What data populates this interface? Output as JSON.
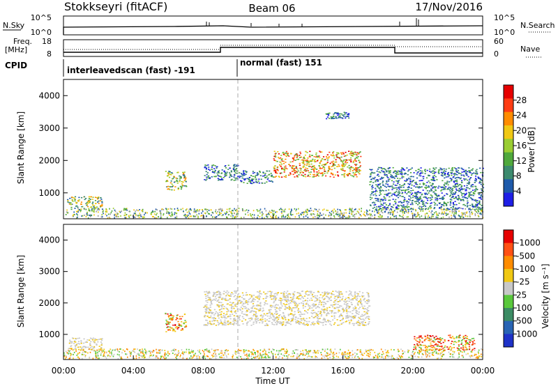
{
  "header": {
    "station": "Stokkseyri (fitACF)",
    "beam": "Beam 06",
    "date": "17/Nov/2016"
  },
  "strip": {
    "nsky_label": "N.Sky",
    "nsearch_label": "N.Search",
    "nsky_ticks": [
      "10^5",
      "10^0"
    ],
    "freq_label_1": "Freq.",
    "freq_label_2": "[MHz]",
    "freq_ticks": [
      "18",
      "8"
    ],
    "nave_label": "Nave",
    "nave_ticks": [
      "60",
      "0"
    ],
    "cpid_label": "CPID",
    "cpid_segments": [
      "interleavedscan (fast) -191",
      "normal (fast) 151"
    ]
  },
  "colors": {
    "power": [
      "#1e1ee6",
      "#1e5aaa",
      "#3c8a6e",
      "#4fa83c",
      "#9acd32",
      "#f0c814",
      "#ff8c00",
      "#ff3c14",
      "#e60000"
    ],
    "velocity": [
      "#1e32c8",
      "#2864b4",
      "#3c8c64",
      "#5ac83c",
      "#c8c8c8",
      "#f0c814",
      "#ff8c00",
      "#ff5014",
      "#e60000"
    ]
  },
  "chart_data": [
    {
      "type": "heatmap",
      "title": "Power",
      "ylabel": "Slant Range [km]",
      "y_ticks": [
        "1000",
        "2000",
        "3000",
        "4000"
      ],
      "ylim": [
        200,
        4500
      ],
      "xlim_hours": [
        0,
        24
      ],
      "colorbar_label": "Power [dB]",
      "colorbar_ticks": [
        "4",
        "8",
        "12",
        "16",
        "20",
        "24",
        "28"
      ],
      "regions": [
        {
          "t": [
            0.2,
            2.2
          ],
          "r": [
            500,
            900
          ],
          "level": "mixed"
        },
        {
          "t": [
            5.8,
            7.0
          ],
          "r": [
            1100,
            1700
          ],
          "level": "mixed"
        },
        {
          "t": [
            8.0,
            10.0
          ],
          "r": [
            1400,
            1900
          ],
          "level": "low"
        },
        {
          "t": [
            10.0,
            12.0
          ],
          "r": [
            1300,
            1700
          ],
          "level": "low"
        },
        {
          "t": [
            12.0,
            17.0
          ],
          "r": [
            1500,
            2300
          ],
          "level": "high"
        },
        {
          "t": [
            15.0,
            16.3
          ],
          "r": [
            3300,
            3500
          ],
          "level": "low"
        },
        {
          "t": [
            17.5,
            24.0
          ],
          "r": [
            500,
            1800
          ],
          "level": "low"
        }
      ]
    },
    {
      "type": "heatmap",
      "title": "Velocity",
      "ylabel": "Slant Range [km]",
      "y_ticks": [
        "1000",
        "2000",
        "3000",
        "4000"
      ],
      "ylim": [
        200,
        4500
      ],
      "xlim_hours": [
        0,
        24
      ],
      "xlabel": "Time UT",
      "x_ticks": [
        "00:00",
        "04:00",
        "08:00",
        "12:00",
        "16:00",
        "20:00",
        "00:00"
      ],
      "colorbar_label": "Velocity [m s⁻¹]",
      "colorbar_ticks": [
        "1000",
        "500",
        "100",
        "25",
        "-25",
        "-100",
        "-500",
        "-1000"
      ],
      "regions": [
        {
          "t": [
            0.2,
            2.2
          ],
          "r": [
            500,
            900
          ],
          "level": "ground"
        },
        {
          "t": [
            5.8,
            7.0
          ],
          "r": [
            1100,
            1700
          ],
          "level": "negative"
        },
        {
          "t": [
            8.0,
            17.5
          ],
          "r": [
            1300,
            2400
          ],
          "level": "ground"
        },
        {
          "t": [
            20.0,
            23.5
          ],
          "r": [
            500,
            1000
          ],
          "level": "negative"
        }
      ]
    }
  ]
}
